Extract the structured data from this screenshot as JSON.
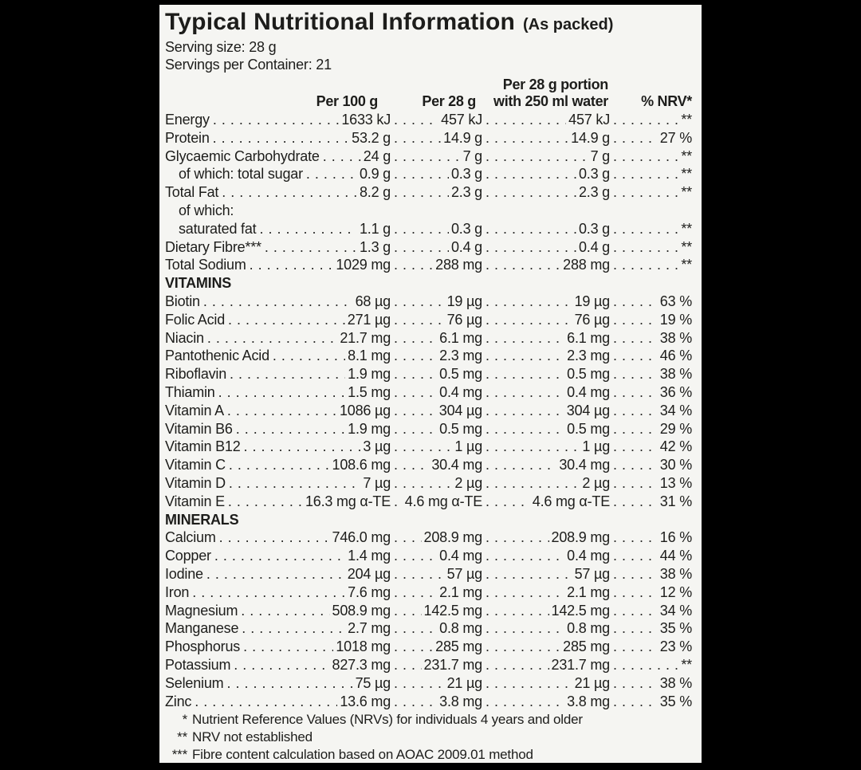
{
  "colors": {
    "page_bg": "#000000",
    "panel_bg": "#f5f5f2",
    "text": "#1d1d1b"
  },
  "header": {
    "title": "Typical Nutritional Information",
    "suffix": "(As packed)",
    "serving_size": "Serving size: 28 g",
    "servings_per_container": "Servings per Container: 21"
  },
  "columns": {
    "per_100g": "Per 100 g",
    "per_28g": "Per 28 g",
    "per_portion_line1": "Per 28 g portion",
    "per_portion_line2": "with 250 ml water",
    "nrv": "% NRV*"
  },
  "sections": [
    {
      "header": null,
      "rows": [
        {
          "label": "Energy",
          "indent": false,
          "per_100g": "1633 kJ",
          "per_28g": "457 kJ",
          "per_portion_water": "457 kJ",
          "nrv": "**"
        },
        {
          "label": "Protein",
          "indent": false,
          "per_100g": "53.2 g",
          "per_28g": "14.9 g",
          "per_portion_water": "14.9 g",
          "nrv": "27 %"
        },
        {
          "label": "Glycaemic Carbohydrate",
          "indent": false,
          "per_100g": "24 g",
          "per_28g": "7 g",
          "per_portion_water": "7 g",
          "nrv": "**"
        },
        {
          "label": "of which: total sugar",
          "indent": true,
          "per_100g": "0.9 g",
          "per_28g": "0.3 g",
          "per_portion_water": "0.3 g",
          "nrv": "**"
        },
        {
          "label": "Total Fat",
          "indent": false,
          "per_100g": "8.2 g",
          "per_28g": "2.3 g",
          "per_portion_water": "2.3 g",
          "nrv": "**"
        },
        {
          "label": "of which:",
          "indent": true,
          "per_100g": null,
          "per_28g": null,
          "per_portion_water": null,
          "nrv": null
        },
        {
          "label": "saturated fat",
          "indent": true,
          "per_100g": "1.1 g",
          "per_28g": "0.3 g",
          "per_portion_water": "0.3 g",
          "nrv": "**"
        },
        {
          "label": "Dietary Fibre***",
          "indent": false,
          "per_100g": "1.3 g",
          "per_28g": "0.4 g",
          "per_portion_water": "0.4 g",
          "nrv": "**"
        },
        {
          "label": "Total Sodium",
          "indent": false,
          "per_100g": "1029 mg",
          "per_28g": "288 mg",
          "per_portion_water": "288 mg",
          "nrv": "**"
        }
      ]
    },
    {
      "header": "VITAMINS",
      "rows": [
        {
          "label": "Biotin",
          "indent": false,
          "per_100g": "68 µg",
          "per_28g": "19 µg",
          "per_portion_water": "19 µg",
          "nrv": "63 %"
        },
        {
          "label": "Folic Acid",
          "indent": false,
          "per_100g": "271 µg",
          "per_28g": "76 µg",
          "per_portion_water": "76 µg",
          "nrv": "19 %"
        },
        {
          "label": "Niacin",
          "indent": false,
          "per_100g": "21.7 mg",
          "per_28g": "6.1 mg",
          "per_portion_water": "6.1 mg",
          "nrv": "38 %"
        },
        {
          "label": "Pantothenic Acid",
          "indent": false,
          "per_100g": "8.1 mg",
          "per_28g": "2.3 mg",
          "per_portion_water": "2.3 mg",
          "nrv": "46 %"
        },
        {
          "label": "Riboflavin",
          "indent": false,
          "per_100g": "1.9 mg",
          "per_28g": "0.5 mg",
          "per_portion_water": "0.5 mg",
          "nrv": "38 %"
        },
        {
          "label": "Thiamin",
          "indent": false,
          "per_100g": "1.5 mg",
          "per_28g": "0.4 mg",
          "per_portion_water": "0.4 mg",
          "nrv": "36 %"
        },
        {
          "label": "Vitamin A",
          "indent": false,
          "per_100g": "1086 µg",
          "per_28g": "304 µg",
          "per_portion_water": "304 µg",
          "nrv": "34 %"
        },
        {
          "label": "Vitamin B6",
          "indent": false,
          "per_100g": "1.9 mg",
          "per_28g": "0.5 mg",
          "per_portion_water": "0.5 mg",
          "nrv": "29 %"
        },
        {
          "label": "Vitamin B12",
          "indent": false,
          "per_100g": "3 µg",
          "per_28g": "1 µg",
          "per_portion_water": "1 µg",
          "nrv": "42 %"
        },
        {
          "label": "Vitamin C",
          "indent": false,
          "per_100g": "108.6 mg",
          "per_28g": "30.4 mg",
          "per_portion_water": "30.4 mg",
          "nrv": "30 %"
        },
        {
          "label": "Vitamin D",
          "indent": false,
          "per_100g": "7 µg",
          "per_28g": "2 µg",
          "per_portion_water": "2 µg",
          "nrv": "13 %"
        },
        {
          "label": "Vitamin E",
          "indent": false,
          "per_100g": "16.3 mg α-TE",
          "per_28g": "4.6 mg α-TE",
          "per_portion_water": "4.6 mg α-TE",
          "nrv": "31 %"
        }
      ]
    },
    {
      "header": "MINERALS",
      "rows": [
        {
          "label": "Calcium",
          "indent": false,
          "per_100g": "746.0 mg",
          "per_28g": "208.9 mg",
          "per_portion_water": "208.9 mg",
          "nrv": "16 %"
        },
        {
          "label": "Copper",
          "indent": false,
          "per_100g": "1.4 mg",
          "per_28g": "0.4 mg",
          "per_portion_water": "0.4 mg",
          "nrv": "44 %"
        },
        {
          "label": "Iodine",
          "indent": false,
          "per_100g": "204 µg",
          "per_28g": "57 µg",
          "per_portion_water": "57 µg",
          "nrv": "38 %"
        },
        {
          "label": "Iron",
          "indent": false,
          "per_100g": "7.6 mg",
          "per_28g": "2.1 mg",
          "per_portion_water": "2.1 mg",
          "nrv": "12 %"
        },
        {
          "label": "Magnesium",
          "indent": false,
          "per_100g": "508.9 mg",
          "per_28g": "142.5 mg",
          "per_portion_water": "142.5 mg",
          "nrv": "34 %"
        },
        {
          "label": "Manganese",
          "indent": false,
          "per_100g": "2.7 mg",
          "per_28g": "0.8 mg",
          "per_portion_water": "0.8 mg",
          "nrv": "35 %"
        },
        {
          "label": "Phosphorus",
          "indent": false,
          "per_100g": "1018 mg",
          "per_28g": "285 mg",
          "per_portion_water": "285 mg",
          "nrv": "23 %"
        },
        {
          "label": "Potassium",
          "indent": false,
          "per_100g": "827.3 mg",
          "per_28g": "231.7 mg",
          "per_portion_water": "231.7 mg",
          "nrv": "**"
        },
        {
          "label": "Selenium",
          "indent": false,
          "per_100g": "75 µg",
          "per_28g": "21 µg",
          "per_portion_water": "21 µg",
          "nrv": "38 %"
        },
        {
          "label": "Zinc",
          "indent": false,
          "per_100g": "13.6 mg",
          "per_28g": "3.8 mg",
          "per_portion_water": "3.8 mg",
          "nrv": "35 %"
        }
      ]
    }
  ],
  "footnotes": [
    {
      "marker": "*",
      "text": "Nutrient Reference Values (NRVs) for individuals 4 years and older"
    },
    {
      "marker": "**",
      "text": "NRV not established"
    },
    {
      "marker": "***",
      "text": "Fibre content calculation based on AOAC 2009.01 method"
    }
  ]
}
